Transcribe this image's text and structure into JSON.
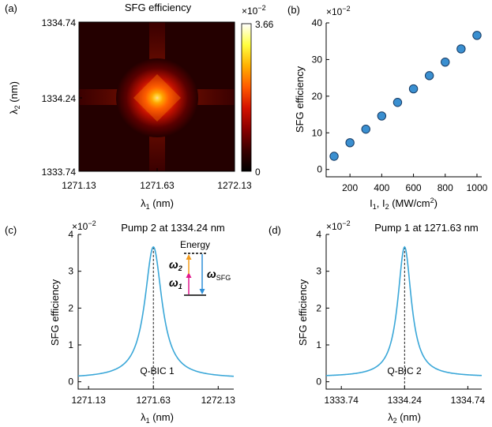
{
  "chart_data": [
    {
      "id": "a",
      "panel_label": "(a)",
      "type": "heatmap",
      "title": "SFG efficiency",
      "xlabel": "λ1 (nm)",
      "ylabel": "λ2 (nm)",
      "xticks": [
        "1271.13",
        "1271.63",
        "1272.13"
      ],
      "yticks": [
        "1334.74",
        "1334.24",
        "1333.74"
      ],
      "xlim": [
        1271.13,
        1272.13
      ],
      "ylim": [
        1333.74,
        1334.74
      ],
      "peak": {
        "x": 1271.63,
        "y": 1334.24,
        "value": 3.66
      },
      "colorbar": {
        "min": 0,
        "max": 3.66,
        "exponent_label": "×10⁻²",
        "tick_labels": [
          "3.66",
          "0"
        ],
        "colormap": [
          "#000000",
          "#3a0000",
          "#8a0000",
          "#d41200",
          "#ff5a00",
          "#ffb000",
          "#ffff40",
          "#ffffff"
        ]
      }
    },
    {
      "id": "b",
      "panel_label": "(b)",
      "type": "scatter",
      "xlabel": "I1, I2 (MW/cm²)",
      "ylabel": "SFG efficiency",
      "exponent_label": "×10⁻²",
      "xlim": [
        50,
        1030
      ],
      "ylim": [
        -2,
        40
      ],
      "xticks": [
        200,
        400,
        600,
        800,
        1000
      ],
      "yticks": [
        0,
        10,
        20,
        30,
        40
      ],
      "x": [
        100,
        200,
        300,
        400,
        500,
        600,
        700,
        800,
        900,
        1000
      ],
      "y": [
        3.6,
        7.3,
        11.0,
        14.6,
        18.3,
        22.0,
        25.6,
        29.3,
        32.9,
        36.6
      ]
    },
    {
      "id": "c",
      "panel_label": "(c)",
      "type": "line",
      "title": "Pump 2 at 1334.24 nm",
      "xlabel": "λ1 (nm)",
      "ylabel": "SFG efficiency",
      "exponent_label": "×10⁻²",
      "xlim": [
        1271.05,
        1272.25
      ],
      "ylim": [
        -0.2,
        4
      ],
      "xticks": [
        "1271.13",
        "1271.63",
        "1272.13"
      ],
      "yticks": [
        0,
        1,
        2,
        3,
        4
      ],
      "peak_x": 1271.63,
      "peak_y": 3.66,
      "baseline": 0.09,
      "halfwidth": 0.08,
      "annotation": "Q-BIC 1",
      "inset": {
        "title": "Energy",
        "omega2": "ω2",
        "omega1": "ω1",
        "omega_sfg": "ωSFG"
      }
    },
    {
      "id": "d",
      "panel_label": "(d)",
      "type": "line",
      "title": "Pump 1 at 1271.63 nm",
      "xlabel": "λ2 (nm)",
      "ylabel": "SFG efficiency",
      "exponent_label": "×10⁻²",
      "xlim": [
        1333.62,
        1334.85
      ],
      "ylim": [
        -0.2,
        4
      ],
      "xticks": [
        "1333.74",
        "1334.24",
        "1334.74"
      ],
      "yticks": [
        0,
        1,
        2,
        3,
        4
      ],
      "peak_x": 1334.24,
      "peak_y": 3.66,
      "baseline": 0.13,
      "halfwidth": 0.065,
      "annotation": "Q-BIC 2"
    }
  ]
}
